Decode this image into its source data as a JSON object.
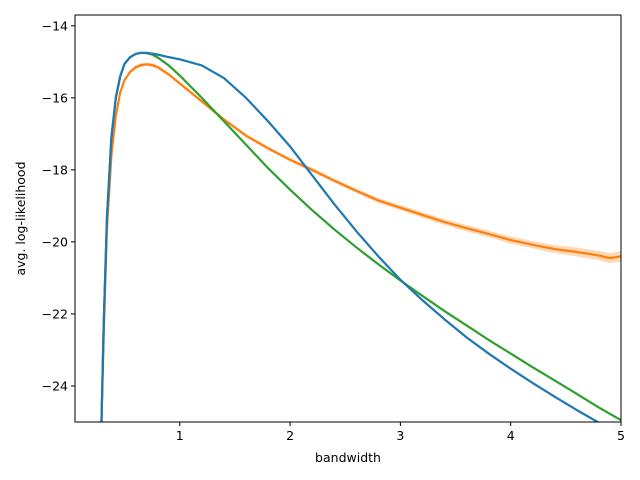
{
  "chart_data": {
    "type": "line",
    "title": "",
    "xlabel": "bandwidth",
    "ylabel": "avg. log-likelihood",
    "xlim": [
      0.05,
      5.0
    ],
    "ylim": [
      -25.0,
      -13.7
    ],
    "xticks": [
      1,
      2,
      3,
      4,
      5
    ],
    "yticks": [
      -24,
      -22,
      -20,
      -18,
      -16,
      -14
    ],
    "ytick_labels": [
      "−24",
      "−22",
      "−20",
      "−18",
      "−16",
      "−14"
    ],
    "grid": false,
    "legend": "none",
    "series": [
      {
        "color": "#ff7f0e",
        "band": true,
        "x": [
          0.29,
          0.31,
          0.34,
          0.38,
          0.42,
          0.46,
          0.5,
          0.55,
          0.6,
          0.65,
          0.7,
          0.75,
          0.8,
          0.9,
          1.0,
          1.2,
          1.4,
          1.6,
          1.8,
          2.0,
          2.2,
          2.4,
          2.6,
          2.8,
          3.0,
          3.2,
          3.4,
          3.6,
          3.8,
          4.0,
          4.2,
          4.4,
          4.6,
          4.8,
          4.9,
          5.0
        ],
        "values": [
          -25.0,
          -22.6,
          -19.6,
          -17.6,
          -16.5,
          -15.85,
          -15.5,
          -15.28,
          -15.15,
          -15.09,
          -15.07,
          -15.09,
          -15.15,
          -15.35,
          -15.6,
          -16.1,
          -16.6,
          -17.05,
          -17.4,
          -17.72,
          -18.0,
          -18.3,
          -18.58,
          -18.85,
          -19.05,
          -19.25,
          -19.45,
          -19.62,
          -19.78,
          -19.95,
          -20.08,
          -20.2,
          -20.28,
          -20.38,
          -20.45,
          -20.4
        ],
        "band_halfwidth": [
          0.0,
          0.0,
          0.0,
          0.02,
          0.03,
          0.04,
          0.05,
          0.05,
          0.05,
          0.05,
          0.05,
          0.05,
          0.05,
          0.05,
          0.05,
          0.05,
          0.05,
          0.05,
          0.05,
          0.05,
          0.06,
          0.06,
          0.06,
          0.07,
          0.07,
          0.08,
          0.08,
          0.09,
          0.09,
          0.1,
          0.1,
          0.11,
          0.12,
          0.13,
          0.14,
          0.15
        ]
      },
      {
        "color": "#2ca02c",
        "band": false,
        "x": [
          0.29,
          0.31,
          0.34,
          0.38,
          0.42,
          0.46,
          0.5,
          0.55,
          0.6,
          0.65,
          0.7,
          0.75,
          0.8,
          0.9,
          1.0,
          1.2,
          1.4,
          1.6,
          1.8,
          2.0,
          2.2,
          2.4,
          2.6,
          2.8,
          3.0,
          3.2,
          3.4,
          3.6,
          3.8,
          4.0,
          4.2,
          4.4,
          4.6,
          4.8,
          5.0
        ],
        "values": [
          -25.0,
          -22.3,
          -19.3,
          -17.1,
          -16.0,
          -15.4,
          -15.05,
          -14.87,
          -14.78,
          -14.75,
          -14.76,
          -14.8,
          -14.88,
          -15.1,
          -15.38,
          -16.0,
          -16.65,
          -17.3,
          -17.95,
          -18.55,
          -19.12,
          -19.65,
          -20.15,
          -20.62,
          -21.07,
          -21.5,
          -21.92,
          -22.32,
          -22.72,
          -23.1,
          -23.48,
          -23.85,
          -24.22,
          -24.6,
          -24.95
        ]
      },
      {
        "color": "#1f77b4",
        "band": false,
        "x": [
          0.29,
          0.31,
          0.34,
          0.38,
          0.42,
          0.46,
          0.5,
          0.55,
          0.6,
          0.65,
          0.7,
          0.75,
          0.8,
          0.9,
          1.0,
          1.2,
          1.4,
          1.6,
          1.8,
          2.0,
          2.2,
          2.4,
          2.6,
          2.8,
          3.0,
          3.2,
          3.4,
          3.6,
          3.8,
          4.0,
          4.2,
          4.4,
          4.6,
          4.8,
          5.0
        ],
        "values": [
          -25.0,
          -22.3,
          -19.3,
          -17.1,
          -16.0,
          -15.4,
          -15.05,
          -14.87,
          -14.78,
          -14.75,
          -14.75,
          -14.77,
          -14.8,
          -14.87,
          -14.93,
          -15.1,
          -15.45,
          -16.0,
          -16.65,
          -17.35,
          -18.15,
          -18.95,
          -19.7,
          -20.4,
          -21.05,
          -21.62,
          -22.15,
          -22.65,
          -23.1,
          -23.52,
          -23.92,
          -24.3,
          -24.67,
          -25.02,
          -25.35
        ]
      }
    ]
  }
}
